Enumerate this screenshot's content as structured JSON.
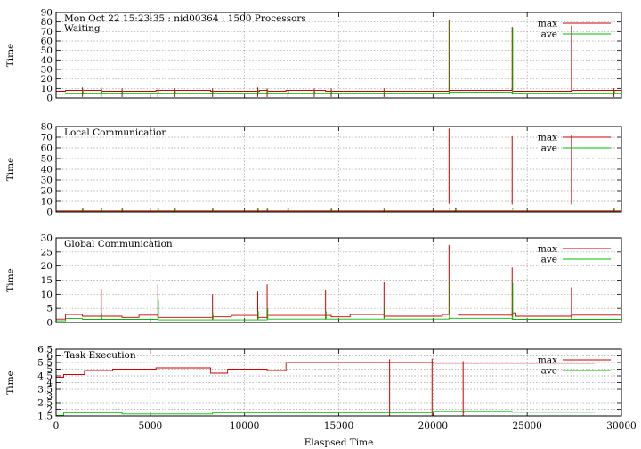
{
  "chart_data": [
    {
      "type": "line",
      "header": "Mon Oct 22 15:23:35 : nid00364 : 1500 Processors",
      "title": "Waiting",
      "xlabel": "",
      "ylabel": "Time",
      "xlim": [
        0,
        30000
      ],
      "ylim": [
        0,
        90
      ],
      "yticks": [
        0,
        10,
        20,
        30,
        40,
        50,
        60,
        70,
        80,
        90
      ],
      "grid": true,
      "legend": "top-right",
      "series": [
        {
          "name": "max",
          "color": "#cc0000",
          "points": [
            [
              0,
              7
            ],
            [
              500,
              7
            ],
            [
              500,
              8
            ],
            [
              2400,
              8
            ],
            [
              2400,
              7
            ],
            [
              5300,
              7
            ],
            [
              5300,
              8
            ],
            [
              8200,
              8
            ],
            [
              8200,
              7
            ],
            [
              10800,
              7
            ],
            [
              10800,
              8
            ],
            [
              11200,
              8
            ],
            [
              11200,
              7
            ],
            [
              12200,
              7
            ],
            [
              12200,
              8
            ],
            [
              14300,
              8
            ],
            [
              14300,
              7
            ],
            [
              20850,
              7
            ],
            [
              20850,
              10
            ],
            [
              20880,
              10
            ],
            [
              20880,
              8
            ],
            [
              24200,
              8
            ],
            [
              24200,
              10
            ],
            [
              24220,
              10
            ],
            [
              24220,
              7
            ],
            [
              27350,
              7
            ],
            [
              27350,
              8
            ],
            [
              30000,
              8
            ]
          ]
        },
        {
          "name": "ave",
          "color": "#00bb00",
          "points": [
            [
              0,
              4
            ],
            [
              500,
              4
            ],
            [
              500,
              5
            ],
            [
              20850,
              5
            ],
            [
              20850,
              6
            ],
            [
              24200,
              6
            ],
            [
              24200,
              5
            ],
            [
              30000,
              5
            ]
          ]
        }
      ],
      "spikes": [
        {
          "x": 1400,
          "max": 11,
          "ave": 9
        },
        {
          "x": 2400,
          "max": 11,
          "ave": 9
        },
        {
          "x": 3500,
          "max": 10,
          "ave": 8
        },
        {
          "x": 5400,
          "max": 10,
          "ave": 9
        },
        {
          "x": 6300,
          "max": 10,
          "ave": 8
        },
        {
          "x": 8300,
          "max": 10,
          "ave": 8
        },
        {
          "x": 10700,
          "max": 11,
          "ave": 9
        },
        {
          "x": 11200,
          "max": 10,
          "ave": 9
        },
        {
          "x": 12300,
          "max": 10,
          "ave": 8
        },
        {
          "x": 13700,
          "max": 10,
          "ave": 8
        },
        {
          "x": 14600,
          "max": 10,
          "ave": 8
        },
        {
          "x": 17400,
          "max": 10,
          "ave": 8
        },
        {
          "x": 20850,
          "max": 82,
          "ave": 80
        },
        {
          "x": 24200,
          "max": 75,
          "ave": 74
        },
        {
          "x": 27350,
          "max": 76,
          "ave": 74
        },
        {
          "x": 29600,
          "max": 10,
          "ave": 8
        }
      ]
    },
    {
      "type": "line",
      "title": "Local Communication",
      "xlabel": "",
      "ylabel": "Time",
      "xlim": [
        0,
        30000
      ],
      "ylim": [
        0,
        80
      ],
      "yticks": [
        0,
        10,
        20,
        30,
        40,
        50,
        60,
        70,
        80
      ],
      "grid": true,
      "legend": "top-right",
      "series": [
        {
          "name": "max",
          "color": "#cc0000",
          "points": [
            [
              0,
              1
            ],
            [
              30000,
              1
            ]
          ]
        },
        {
          "name": "ave",
          "color": "#00bb00",
          "points": [
            [
              0,
              0.3
            ],
            [
              30000,
              0.3
            ]
          ]
        }
      ],
      "spikes": [
        {
          "x": 1400,
          "max": 3,
          "ave": 1
        },
        {
          "x": 2400,
          "max": 3,
          "ave": 1
        },
        {
          "x": 3500,
          "max": 3,
          "ave": 1
        },
        {
          "x": 5400,
          "max": 3,
          "ave": 1
        },
        {
          "x": 6300,
          "max": 3,
          "ave": 1
        },
        {
          "x": 8300,
          "max": 3,
          "ave": 1
        },
        {
          "x": 10700,
          "max": 3,
          "ave": 1
        },
        {
          "x": 11200,
          "max": 3,
          "ave": 1
        },
        {
          "x": 12300,
          "max": 3,
          "ave": 1
        },
        {
          "x": 14600,
          "max": 3,
          "ave": 1
        },
        {
          "x": 17400,
          "max": 3,
          "ave": 1
        },
        {
          "x": 20850,
          "max": 78,
          "ave": 2
        },
        {
          "x": 21200,
          "max": 4,
          "ave": 1
        },
        {
          "x": 24200,
          "max": 71,
          "ave": 2
        },
        {
          "x": 27350,
          "max": 72,
          "ave": 2
        },
        {
          "x": 29600,
          "max": 3,
          "ave": 1
        }
      ]
    },
    {
      "type": "line",
      "title": "Global Communication",
      "xlabel": "",
      "ylabel": "Time",
      "xlim": [
        0,
        30000
      ],
      "ylim": [
        0,
        30
      ],
      "yticks": [
        0,
        5,
        10,
        15,
        20,
        25,
        30
      ],
      "grid": true,
      "legend": "top-right",
      "series": [
        {
          "name": "max",
          "color": "#cc0000",
          "points": [
            [
              0,
              1.2
            ],
            [
              500,
              1.2
            ],
            [
              500,
              2.8
            ],
            [
              1400,
              2.8
            ],
            [
              1400,
              2.2
            ],
            [
              3500,
              2.2
            ],
            [
              3500,
              1.8
            ],
            [
              4400,
              1.8
            ],
            [
              4400,
              2.6
            ],
            [
              5400,
              2.6
            ],
            [
              5400,
              1.8
            ],
            [
              8300,
              1.8
            ],
            [
              8300,
              2
            ],
            [
              9300,
              2
            ],
            [
              9300,
              2.5
            ],
            [
              10700,
              2.5
            ],
            [
              10700,
              1.8
            ],
            [
              11200,
              1.8
            ],
            [
              11200,
              2.5
            ],
            [
              14600,
              2.5
            ],
            [
              14600,
              2
            ],
            [
              15600,
              2
            ],
            [
              15600,
              2.8
            ],
            [
              17400,
              2.8
            ],
            [
              17400,
              2.2
            ],
            [
              20500,
              2.2
            ],
            [
              20500,
              2.8
            ],
            [
              20850,
              2.8
            ],
            [
              20850,
              3
            ],
            [
              21400,
              3
            ],
            [
              21400,
              2.6
            ],
            [
              24200,
              2.6
            ],
            [
              24200,
              3.4
            ],
            [
              24400,
              3.4
            ],
            [
              24400,
              2.2
            ],
            [
              27350,
              2.2
            ],
            [
              27350,
              2.6
            ],
            [
              30000,
              2.6
            ]
          ]
        },
        {
          "name": "ave",
          "color": "#00bb00",
          "points": [
            [
              0,
              0.6
            ],
            [
              500,
              0.6
            ],
            [
              500,
              1.4
            ],
            [
              1400,
              1.4
            ],
            [
              1400,
              1.1
            ],
            [
              5400,
              1.1
            ],
            [
              5400,
              0.9
            ],
            [
              11200,
              0.9
            ],
            [
              11200,
              1.2
            ],
            [
              20850,
              1.2
            ],
            [
              20850,
              1.5
            ],
            [
              24200,
              1.5
            ],
            [
              24200,
              1.1
            ],
            [
              30000,
              1.1
            ]
          ]
        }
      ],
      "spikes": [
        {
          "x": 2400,
          "max": 12,
          "ave": 3
        },
        {
          "x": 5400,
          "max": 13.5,
          "ave": 8
        },
        {
          "x": 8300,
          "max": 10,
          "ave": 3
        },
        {
          "x": 10700,
          "max": 11,
          "ave": 4
        },
        {
          "x": 11200,
          "max": 13.5,
          "ave": 5
        },
        {
          "x": 14300,
          "max": 11.5,
          "ave": 4
        },
        {
          "x": 17400,
          "max": 14.5,
          "ave": 6
        },
        {
          "x": 20850,
          "max": 27.5,
          "ave": 15
        },
        {
          "x": 24200,
          "max": 19.5,
          "ave": 14
        },
        {
          "x": 27350,
          "max": 12.5,
          "ave": 5
        }
      ]
    },
    {
      "type": "line",
      "title": "Task Execution",
      "xlabel": "Elaspsed Time",
      "ylabel": "Time",
      "xlim": [
        0,
        30000
      ],
      "ylim": [
        1.5,
        6.5
      ],
      "yticks": [
        1.5,
        2,
        2.5,
        3,
        3.5,
        4,
        4.5,
        5,
        5.5,
        6,
        6.5
      ],
      "xticks": [
        0,
        5000,
        10000,
        15000,
        20000,
        25000,
        30000
      ],
      "grid": true,
      "legend": "top-right",
      "series": [
        {
          "name": "max",
          "color": "#cc0000",
          "points": [
            [
              0,
              4.4
            ],
            [
              400,
              4.4
            ],
            [
              400,
              4.6
            ],
            [
              1500,
              4.6
            ],
            [
              1500,
              4.9
            ],
            [
              3000,
              4.9
            ],
            [
              3000,
              5.0
            ],
            [
              5300,
              5.0
            ],
            [
              5300,
              5.1
            ],
            [
              8200,
              5.1
            ],
            [
              8200,
              4.7
            ],
            [
              9100,
              4.7
            ],
            [
              9100,
              5.0
            ],
            [
              11200,
              5.0
            ],
            [
              11200,
              4.9
            ],
            [
              12200,
              4.9
            ],
            [
              12200,
              5.5
            ],
            [
              20000,
              5.5
            ],
            [
              20000,
              5.45
            ],
            [
              28600,
              5.45
            ]
          ]
        },
        {
          "name": "ave",
          "color": "#00bb00",
          "points": [
            [
              0,
              1.55
            ],
            [
              400,
              1.55
            ],
            [
              400,
              1.75
            ],
            [
              3500,
              1.75
            ],
            [
              3500,
              1.65
            ],
            [
              8300,
              1.65
            ],
            [
              8300,
              1.75
            ],
            [
              20000,
              1.75
            ],
            [
              20000,
              1.85
            ],
            [
              24200,
              1.85
            ],
            [
              24200,
              1.78
            ],
            [
              28600,
              1.78
            ]
          ]
        }
      ],
      "spikes": [
        {
          "x": 17700,
          "max": 5.75,
          "ave": 1.78
        },
        {
          "x": 19950,
          "max": 5.8,
          "ave": 1.8
        },
        {
          "x": 21600,
          "max": 5.6,
          "ave": 1.8
        }
      ]
    }
  ]
}
